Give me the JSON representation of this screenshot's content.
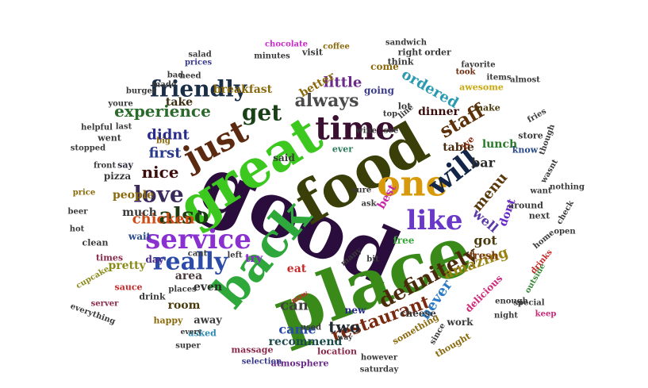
{
  "words": [
    {
      "text": "good",
      "color": "#2a0c3d"
    },
    {
      "text": "food",
      "color": "#3a3f0a"
    },
    {
      "text": "place",
      "color": "#3a8a1a"
    },
    {
      "text": "great",
      "color": "#3cc81e"
    },
    {
      "text": "back",
      "color": "#2ea83a"
    },
    {
      "text": "service",
      "color": "#8a2fd0"
    },
    {
      "text": "time",
      "color": "#3a1030"
    },
    {
      "text": "one",
      "color": "#d89a0a"
    },
    {
      "text": "like",
      "color": "#6a38c8"
    },
    {
      "text": "just",
      "color": "#5c2a10"
    },
    {
      "text": "will",
      "color": "#14254a"
    },
    {
      "text": "definitely",
      "color": "#4a2a0c"
    },
    {
      "text": "really",
      "color": "#2c4aa8"
    },
    {
      "text": "also",
      "color": "#1a3c10"
    },
    {
      "text": "love",
      "color": "#3a2a5c"
    },
    {
      "text": "get",
      "color": "#1a4018"
    },
    {
      "text": "friendly",
      "color": "#1a2e48"
    },
    {
      "text": "staff",
      "color": "#5c3008"
    },
    {
      "text": "always",
      "color": "#4a4a4a"
    },
    {
      "text": "restaurant",
      "color": "#7a2a10"
    },
    {
      "text": "experience",
      "color": "#2a6a2a"
    },
    {
      "text": "chicken",
      "color": "#d04a14"
    },
    {
      "text": "nice",
      "color": "#3a0c0c"
    },
    {
      "text": "ordered",
      "color": "#2a9ab0"
    },
    {
      "text": "amazing",
      "color": "#9a8410"
    },
    {
      "text": "never",
      "color": "#2a7ac8"
    },
    {
      "text": "menu",
      "color": "#5a3a0c"
    },
    {
      "text": "two",
      "color": "#202a30"
    },
    {
      "text": "didnt",
      "color": "#2a2a8a"
    },
    {
      "text": "first",
      "color": "#2a3a8a"
    },
    {
      "text": "well",
      "color": "#5a3aa8"
    },
    {
      "text": "got",
      "color": "#4a3a0c"
    },
    {
      "text": "came",
      "color": "#2a4aa8"
    },
    {
      "text": "little",
      "color": "#6a2a8a"
    },
    {
      "text": "can",
      "color": "#404040"
    },
    {
      "text": "bar",
      "color": "#2a2a2a"
    },
    {
      "text": "breakfast",
      "color": "#8a6a0c"
    },
    {
      "text": "room",
      "color": "#4a3a0c"
    },
    {
      "text": "even",
      "color": "#2a2a2a"
    },
    {
      "text": "best",
      "color": "#c82aa8"
    },
    {
      "text": "lunch",
      "color": "#2a7a2a"
    },
    {
      "text": "dont",
      "color": "#6a2ac8"
    },
    {
      "text": "table",
      "color": "#4a2a0c"
    },
    {
      "text": "recommend",
      "color": "#1a4a4a"
    },
    {
      "text": "people",
      "color": "#8a6a0c"
    },
    {
      "text": "much",
      "color": "#3a3a3a"
    },
    {
      "text": "area",
      "color": "#4a3a3a"
    },
    {
      "text": "pretty",
      "color": "#8a8a1a"
    },
    {
      "text": "take",
      "color": "#3a2a0c"
    },
    {
      "text": "said",
      "color": "#3a3a3a"
    },
    {
      "text": "going",
      "color": "#3a3a8a"
    },
    {
      "text": "come",
      "color": "#8a6a0c"
    },
    {
      "text": "better",
      "color": "#8a6a0c"
    },
    {
      "text": "try",
      "color": "#8a2ac8"
    },
    {
      "text": "free",
      "color": "#3aa83a"
    },
    {
      "text": "fresh",
      "color": "#7a3a0c"
    },
    {
      "text": "delicious",
      "color": "#d02a7a"
    },
    {
      "text": "dinner",
      "color": "#3a0c0c"
    },
    {
      "text": "new",
      "color": "#2a2a8a"
    },
    {
      "text": "away",
      "color": "#3a3a3a"
    },
    {
      "text": "wait",
      "color": "#2a4a8a"
    },
    {
      "text": "pizza",
      "color": "#3a3a3a"
    },
    {
      "text": "day",
      "color": "#4a2a8a"
    },
    {
      "text": "eat",
      "color": "#c82a2a"
    },
    {
      "text": "cheese",
      "color": "#3a3a3a"
    },
    {
      "text": "work",
      "color": "#3a3a3a"
    },
    {
      "text": "ever",
      "color": "#2a7a5a"
    },
    {
      "text": "lot",
      "color": "#3a3a3a"
    },
    {
      "text": "make",
      "color": "#4a3a0c"
    },
    {
      "text": "say",
      "color": "#2a2a3a"
    },
    {
      "text": "next",
      "color": "#3a3a3a"
    },
    {
      "text": "around",
      "color": "#3a3a3a"
    },
    {
      "text": "know",
      "color": "#2a4a8a"
    },
    {
      "text": "store",
      "color": "#3a3a3a"
    },
    {
      "text": "ive",
      "color": "#8a2a0c"
    },
    {
      "text": "went",
      "color": "#3a3a3a"
    },
    {
      "text": "think",
      "color": "#3a3a3a"
    },
    {
      "text": "right",
      "color": "#3a3a3a"
    },
    {
      "text": "order",
      "color": "#3a3a3a"
    },
    {
      "text": "minutes",
      "color": "#3a3a3a"
    },
    {
      "text": "need",
      "color": "#3a3a3a"
    },
    {
      "text": "prices",
      "color": "#3a3a8a"
    },
    {
      "text": "made",
      "color": "#3a3a3a"
    },
    {
      "text": "burger",
      "color": "#3a3a3a"
    },
    {
      "text": "visit",
      "color": "#3a3a3a"
    },
    {
      "text": "awesome",
      "color": "#c8a80c"
    },
    {
      "text": "took",
      "color": "#6a2a0c"
    },
    {
      "text": "sauce",
      "color": "#c82a2a"
    },
    {
      "text": "times",
      "color": "#8a2a4a"
    },
    {
      "text": "clean",
      "color": "#3a3a3a"
    },
    {
      "text": "price",
      "color": "#8a6a0c"
    },
    {
      "text": "drink",
      "color": "#3a3a3a"
    },
    {
      "text": "happy",
      "color": "#8a6a0c"
    },
    {
      "text": "asked",
      "color": "#2a8ab0"
    },
    {
      "text": "location",
      "color": "#8a2a4a"
    },
    {
      "text": "something",
      "color": "#8a6a0c"
    },
    {
      "text": "massage",
      "color": "#8a2a4a"
    },
    {
      "text": "atmosphere",
      "color": "#6a2a8a"
    },
    {
      "text": "selection",
      "color": "#3a3a8a"
    },
    {
      "text": "saturday",
      "color": "#3a3a3a"
    },
    {
      "text": "however",
      "color": "#3a3a3a"
    },
    {
      "text": "thought",
      "color": "#8a6a0c"
    },
    {
      "text": "since",
      "color": "#3a3a3a"
    },
    {
      "text": "night",
      "color": "#3a3a3a"
    },
    {
      "text": "enough",
      "color": "#3a3a3a"
    },
    {
      "text": "outside",
      "color": "#3a8a3a"
    },
    {
      "text": "special",
      "color": "#3a3a3a"
    },
    {
      "text": "drinks",
      "color": "#c82a2a"
    },
    {
      "text": "keep",
      "color": "#c82a7a"
    },
    {
      "text": "home",
      "color": "#3a3a3a"
    },
    {
      "text": "open",
      "color": "#3a3a3a"
    },
    {
      "text": "check",
      "color": "#3a3a3a"
    },
    {
      "text": "want",
      "color": "#3a3a3a"
    },
    {
      "text": "nothing",
      "color": "#3a3a3a"
    },
    {
      "text": "wasnt",
      "color": "#3a3a3a"
    },
    {
      "text": "though",
      "color": "#3a3a3a"
    },
    {
      "text": "fries",
      "color": "#3a3a3a"
    },
    {
      "text": "favorite",
      "color": "#3a3a3a"
    },
    {
      "text": "items",
      "color": "#3a3a3a"
    },
    {
      "text": "almost",
      "color": "#3a3a3a"
    },
    {
      "text": "sandwich",
      "color": "#3a3a3a"
    },
    {
      "text": "chocolate",
      "color": "#c82ac8"
    },
    {
      "text": "coffee",
      "color": "#8a6a0c"
    },
    {
      "text": "salad",
      "color": "#3a3a3a"
    },
    {
      "text": "bad",
      "color": "#3a3a3a"
    },
    {
      "text": "youre",
      "color": "#3a3a3a"
    },
    {
      "text": "helpful",
      "color": "#3a3a3a"
    },
    {
      "text": "last",
      "color": "#3a3a3a"
    },
    {
      "text": "big",
      "color": "#8a6a0c"
    },
    {
      "text": "stopped",
      "color": "#3a3a3a"
    },
    {
      "text": "front",
      "color": "#3a3a3a"
    },
    {
      "text": "beer",
      "color": "#3a3a3a"
    },
    {
      "text": "hot",
      "color": "#3a3a3a"
    },
    {
      "text": "cupcake",
      "color": "#8a8a1a"
    },
    {
      "text": "server",
      "color": "#8a2a4a"
    },
    {
      "text": "everything",
      "color": "#3a3a3a"
    },
    {
      "text": "every",
      "color": "#3a3a3a"
    },
    {
      "text": "super",
      "color": "#3a3a3a"
    },
    {
      "text": "used",
      "color": "#3a3a3a"
    },
    {
      "text": "way",
      "color": "#3a3a3a"
    },
    {
      "text": "now",
      "color": "#c82a2a"
    },
    {
      "text": "places",
      "color": "#3a3a3a"
    },
    {
      "text": "cant",
      "color": "#3a3a3a"
    },
    {
      "text": "left",
      "color": "#3a3a3a"
    },
    {
      "text": "many",
      "color": "#3a3a3a"
    },
    {
      "text": "bit",
      "color": "#3a3a3a"
    },
    {
      "text": "ask",
      "color": "#3a3a3a"
    },
    {
      "text": "sure",
      "color": "#3a3a3a"
    },
    {
      "text": "wine",
      "color": "#3a3a3a"
    },
    {
      "text": "top",
      "color": "#3a3a3a"
    },
    {
      "text": "see",
      "color": "#3a3a3a"
    },
    {
      "text": "line",
      "color": "#3a3a3a"
    }
  ]
}
